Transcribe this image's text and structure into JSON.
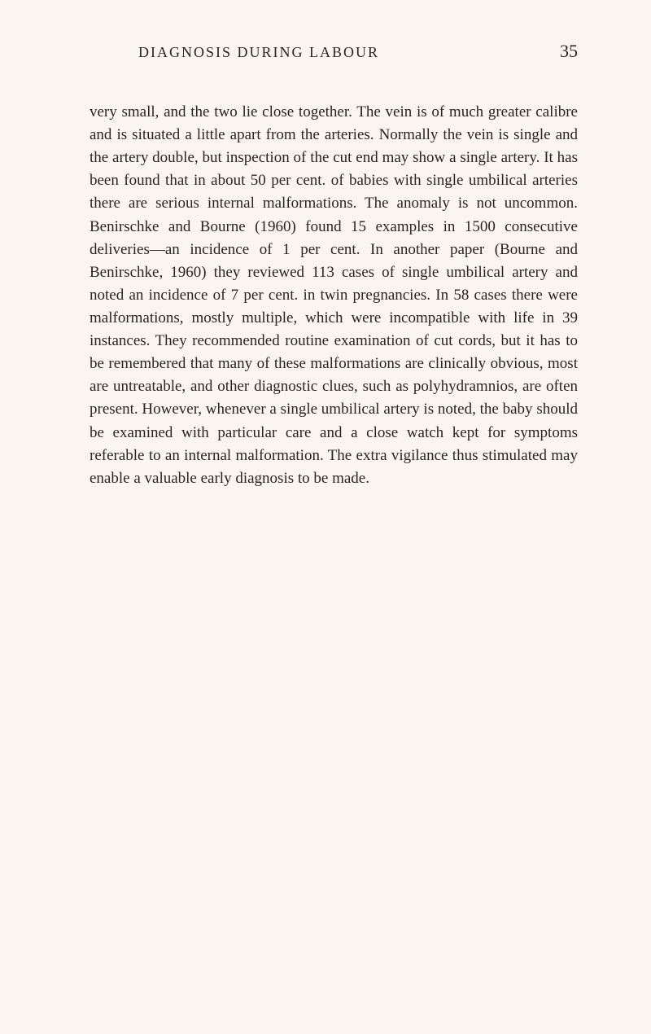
{
  "header": {
    "title": "DIAGNOSIS DURING LABOUR",
    "page_number": "35"
  },
  "content": {
    "paragraph": "very small, and the two lie close together. The vein is of much greater calibre and is situated a little apart from the arteries. Normally the vein is single and the artery double, but inspection of the cut end may show a single artery. It has been found that in about 50 per cent. of babies with single umbilical arteries there are serious internal malformations. The anomaly is not uncommon. Benirschke and Bourne (1960) found 15 examples in 1500 consecutive deliveries—an incidence of 1 per cent. In another paper (Bourne and Benirschke, 1960) they reviewed 113 cases of single umbilical artery and noted an incidence of 7 per cent. in twin pregnancies. In 58 cases there were malformations, mostly multiple, which were incompatible with life in 39 instances. They recommended routine examination of cut cords, but it has to be remembered that many of these malformations are clinically obvious, most are untreatable, and other diagnostic clues, such as polyhydramnios, are often present. However, whenever a single umbilical artery is noted, the baby should be examined with particular care and a close watch kept for symptoms referable to an internal malformation. The extra vigilance thus stimulated may enable a valuable early diagnosis to be made."
  },
  "styling": {
    "background_color": "#faf5ee",
    "text_color": "#2a2520",
    "header_fontsize": 18,
    "page_number_fontsize": 22,
    "body_fontsize": 19,
    "line_height": 1.48,
    "letter_spacing_header": 2
  }
}
